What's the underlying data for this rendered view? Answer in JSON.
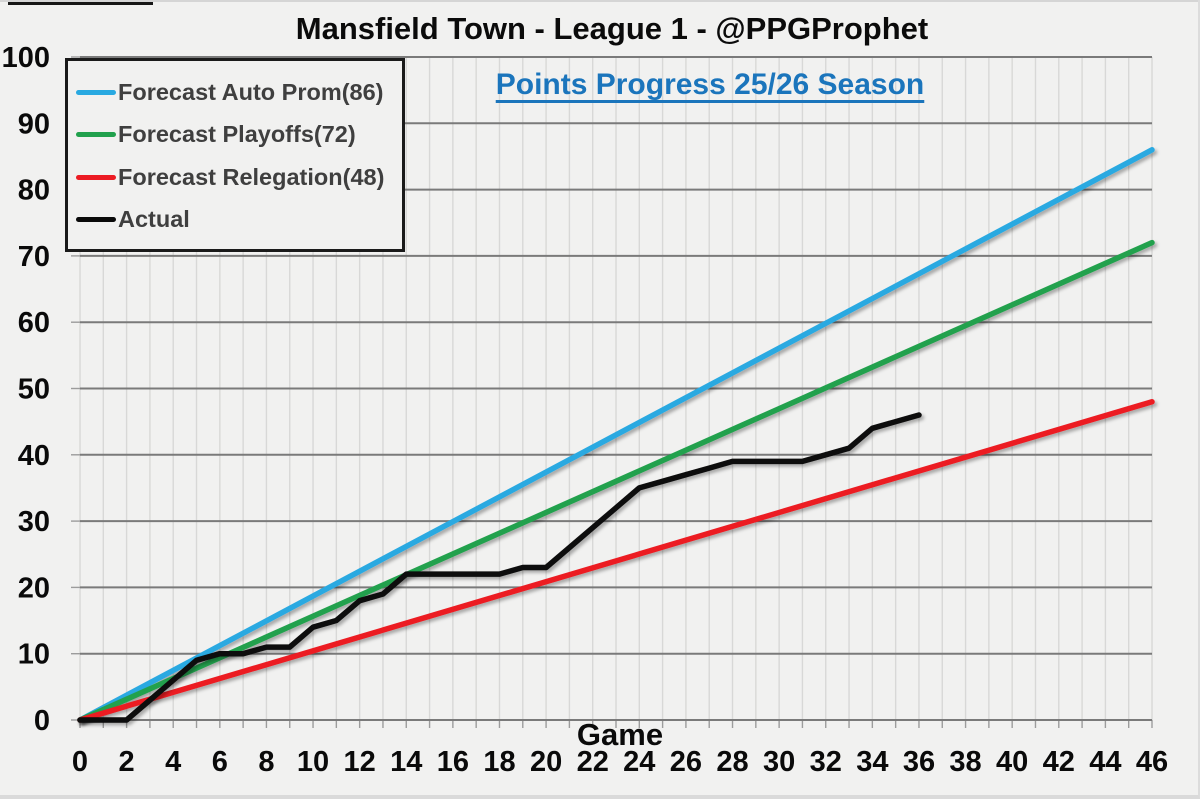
{
  "title": "Mansfield Town - League 1 - @PPGProphet",
  "subtitle": "Points Progress 25/26 Season",
  "colors": {
    "background": "#F1F1F0",
    "subtitle_blue": "#1B75BC",
    "auto_prom_blue": "#29A9E1",
    "playoffs_green": "#21A14D",
    "relegation_red": "#EC1B23",
    "actual_black": "#0A0A0A",
    "major_gridline": "#7A7A7A",
    "minor_gridline": "#D8D8D7",
    "tick_mark": "#9C9C9C",
    "tick_label": "#0A0A0A",
    "legend_text": "#3F3F3F"
  },
  "legend": {
    "items": [
      {
        "label": "Forecast Auto Prom(86)",
        "color": "#29A9E1"
      },
      {
        "label": "Forecast Playoffs(72)",
        "color": "#21A14D"
      },
      {
        "label": "Forecast Relegation(48)",
        "color": "#EC1B23"
      },
      {
        "label": "Actual",
        "color": "#0A0A0A"
      }
    ]
  },
  "chart_data": {
    "type": "line",
    "title": "Mansfield Town - League 1 - @PPGProphet",
    "subtitle": "Points Progress 25/26 Season",
    "xlabel": "Game",
    "ylabel": "",
    "xlim": [
      0,
      46
    ],
    "ylim": [
      0,
      100
    ],
    "x_ticks": [
      0,
      2,
      4,
      6,
      8,
      10,
      12,
      14,
      16,
      18,
      20,
      22,
      24,
      26,
      28,
      30,
      32,
      34,
      36,
      38,
      40,
      42,
      44,
      46
    ],
    "y_ticks": [
      0,
      10,
      20,
      30,
      40,
      50,
      60,
      70,
      80,
      90,
      100
    ],
    "grid": {
      "x_step": 1,
      "y_step": 10
    },
    "legend_position": "top-left",
    "series": [
      {
        "name": "Forecast Auto Prom(86)",
        "color": "#29A9E1",
        "x": [
          0,
          46
        ],
        "y": [
          0,
          86
        ]
      },
      {
        "name": "Forecast Playoffs(72)",
        "color": "#21A14D",
        "x": [
          0,
          46
        ],
        "y": [
          0,
          72
        ]
      },
      {
        "name": "Forecast Relegation(48)",
        "color": "#EC1B23",
        "x": [
          0,
          46
        ],
        "y": [
          0,
          48
        ]
      },
      {
        "name": "Actual",
        "color": "#0A0A0A",
        "x": [
          0,
          1,
          2,
          3,
          4,
          5,
          6,
          7,
          8,
          9,
          10,
          11,
          12,
          13,
          14,
          15,
          16,
          17,
          18,
          19,
          20,
          21,
          22,
          23,
          24,
          25,
          26,
          27,
          28,
          29,
          30,
          31,
          32,
          33,
          34,
          35,
          36
        ],
        "y": [
          0,
          0,
          0,
          3,
          6,
          9,
          10,
          10,
          11,
          11,
          14,
          15,
          18,
          19,
          22,
          22,
          22,
          22,
          22,
          23,
          23,
          26,
          29,
          32,
          35,
          36,
          37,
          38,
          39,
          39,
          39,
          39,
          40,
          41,
          44,
          45,
          46
        ]
      }
    ]
  }
}
